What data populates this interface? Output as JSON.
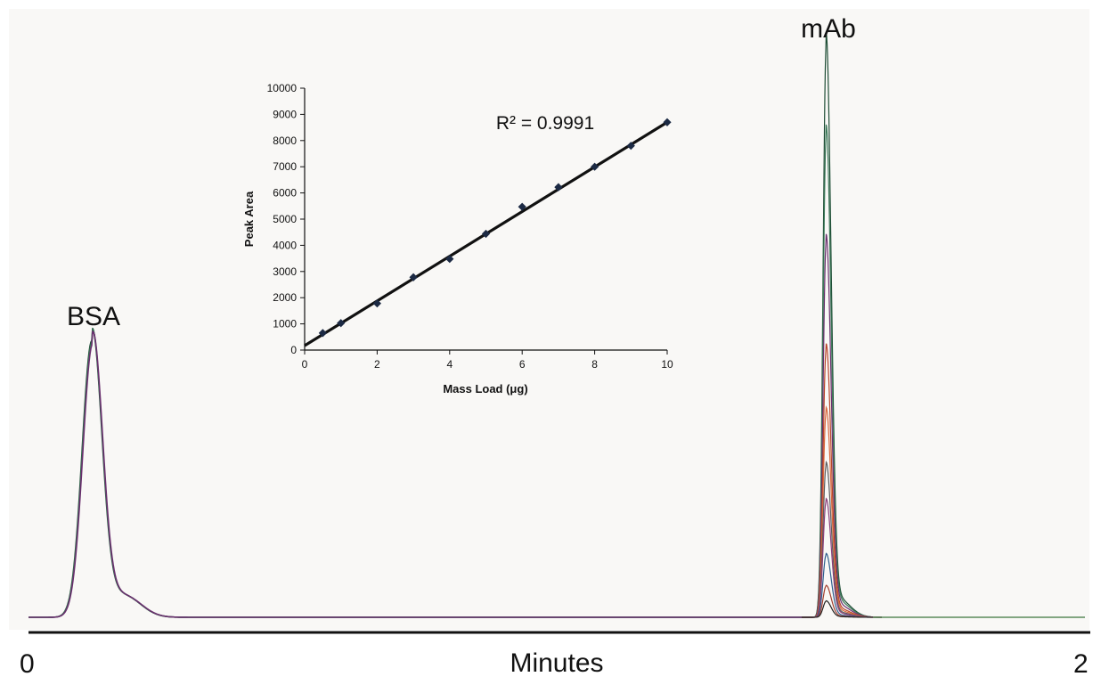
{
  "chromatogram": {
    "x_axis_title": "Minutes",
    "x_tick_labels": [
      "0",
      "2"
    ],
    "xlim": [
      0,
      2
    ],
    "peaks": [
      {
        "label": "BSA",
        "retention_time": 0.12
      },
      {
        "label": "mAb",
        "retention_time": 1.51
      }
    ],
    "colors": {
      "background": "#f9f8f6",
      "baseline": "#5a8a5a",
      "axis": "#111111",
      "traces": [
        "#1e4d35",
        "#3d7a5a",
        "#6a2f6e",
        "#b8452b",
        "#d9683e",
        "#5d5d5d",
        "#8a3e7a",
        "#2f5f8f",
        "#a33f2f",
        "#222222"
      ]
    }
  },
  "chart_data": {
    "type": "scatter",
    "title": "",
    "xlabel": "Mass Load (μg)",
    "ylabel": "Peak Area",
    "xlim": [
      0,
      10
    ],
    "ylim": [
      0,
      10000
    ],
    "x_ticks": [
      0,
      2,
      4,
      6,
      8,
      10
    ],
    "y_ticks": [
      0,
      1000,
      2000,
      3000,
      4000,
      5000,
      6000,
      7000,
      8000,
      9000,
      10000
    ],
    "series": [
      {
        "x": [
          0.5,
          1,
          2,
          3,
          4,
          5,
          6,
          7,
          8,
          9,
          10
        ],
        "y": [
          650,
          1030,
          1780,
          2780,
          3480,
          4440,
          5470,
          6220,
          7000,
          7800,
          8700
        ]
      }
    ],
    "trendline": {
      "x": [
        0,
        10
      ],
      "y": [
        170,
        8700
      ]
    },
    "annotation": "R² = 0.9991",
    "grid": false,
    "marker_color": "#1c2a44",
    "line_color": "#111111"
  }
}
